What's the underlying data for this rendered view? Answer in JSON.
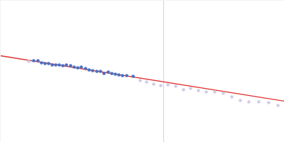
{
  "chart_data": {
    "type": "scatter",
    "xlim": [
      0,
      400
    ],
    "ylim": [
      0,
      200
    ],
    "tick_labels": false,
    "grid": false,
    "series": [
      {
        "type": "vline",
        "color": "#c8d4ea",
        "x": [
          230
        ]
      },
      {
        "type": "line",
        "color": "#e03030",
        "x": [
          0,
          400
        ],
        "values": [
          122,
          58
        ]
      },
      {
        "type": "scatter",
        "marker": "circle",
        "color": "#d0cce6",
        "x": [
          40,
          197,
          206,
          216,
          226,
          236,
          247,
          258,
          268,
          279,
          290,
          302,
          314,
          326,
          338,
          350,
          364,
          378,
          391
        ],
        "values": [
          114,
          87,
          85,
          82,
          80,
          81,
          79,
          74,
          76,
          73,
          71,
          71,
          69,
          64,
          59,
          57,
          57,
          56,
          52
        ]
      },
      {
        "type": "scatter",
        "marker": "circle",
        "color": "#4a6fc0",
        "x": [
          47,
          53,
          58,
          63,
          68,
          73,
          78,
          83,
          88,
          93,
          99,
          104,
          109,
          114,
          120,
          125,
          130,
          136,
          141,
          146,
          152,
          157,
          162,
          167,
          172,
          178,
          187
        ],
        "values": [
          115,
          115,
          112,
          111,
          111,
          109,
          109,
          109,
          108,
          109,
          108,
          106,
          105,
          106,
          104,
          102,
          101,
          100,
          100,
          97,
          99,
          97,
          96,
          95,
          94,
          94,
          93
        ]
      }
    ]
  }
}
